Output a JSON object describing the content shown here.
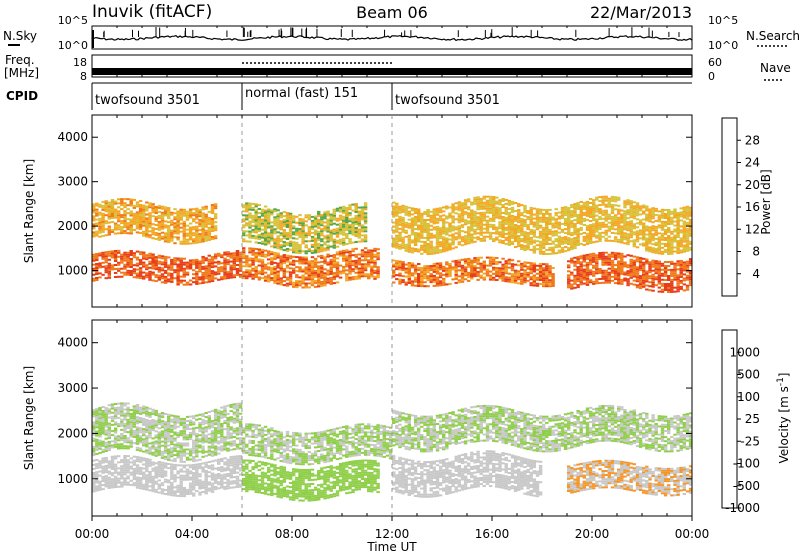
{
  "header": {
    "station": "Inuvik (fitACF)",
    "beam": "Beam 06",
    "date": "22/Mar/2013"
  },
  "chart_data": [
    {
      "type": "line",
      "panel": "noise",
      "left_label": "N.Sky",
      "right_label": "N.Search",
      "left_ticks": [
        "10^5",
        "10^0"
      ],
      "right_ticks": [
        "10^5",
        "10^0"
      ]
    },
    {
      "type": "line",
      "panel": "frequency",
      "left_label": [
        "Freq.",
        "[MHz]"
      ],
      "right_label": "Nave",
      "left_ticks": [
        "18",
        "8"
      ],
      "right_ticks": [
        "60",
        "0"
      ],
      "freq_mhz": 10.5
    },
    {
      "type": "table",
      "panel": "cpid",
      "label": "CPID",
      "segments": [
        {
          "start_hour": 0,
          "end_hour": 6,
          "name": "twofsound 3501"
        },
        {
          "start_hour": 6,
          "end_hour": 12,
          "name": "normal (fast) 151"
        },
        {
          "start_hour": 12,
          "end_hour": 24,
          "name": "twofsound 3501"
        }
      ]
    },
    {
      "type": "heatmap",
      "panel": "power",
      "ylabel": "Slant Range [km]",
      "ylim": [
        180,
        4500
      ],
      "yticks": [
        1000,
        2000,
        3000,
        4000
      ],
      "colorbar_label": "Power [dB]",
      "colorbar_range": [
        0,
        32
      ],
      "colorbar_ticks": [
        4,
        8,
        12,
        16,
        20,
        24,
        28
      ],
      "colors": [
        "#0a1fd4",
        "#2f55a8",
        "#3e8a5e",
        "#55a84a",
        "#d6c33a",
        "#f5a623",
        "#f07a1a",
        "#e83c1a"
      ],
      "echo_bands": [
        {
          "start_hour": 0,
          "end_hour": 6,
          "range_low": 750,
          "range_high": 1350,
          "level": 28
        },
        {
          "start_hour": 0,
          "end_hour": 5,
          "range_low": 1700,
          "range_high": 2500,
          "level": 22
        },
        {
          "start_hour": 6,
          "end_hour": 11.5,
          "range_low": 700,
          "range_high": 1400,
          "level": 26
        },
        {
          "start_hour": 6,
          "end_hour": 11,
          "range_low": 1500,
          "range_high": 2400,
          "level": 18
        },
        {
          "start_hour": 12,
          "end_hour": 18.5,
          "range_low": 700,
          "range_high": 1200,
          "level": 26
        },
        {
          "start_hour": 12,
          "end_hour": 24,
          "range_low": 1500,
          "range_high": 2500,
          "level": 20
        },
        {
          "start_hour": 19,
          "end_hour": 24,
          "range_low": 600,
          "range_high": 1300,
          "level": 28
        }
      ]
    },
    {
      "type": "heatmap",
      "panel": "velocity",
      "ylabel": "Slant Range [km]",
      "ylim": [
        180,
        4500
      ],
      "yticks": [
        1000,
        2000,
        3000,
        4000
      ],
      "colorbar_label": "Velocity [m s^-1]",
      "colorbar_range": [
        -1250,
        1250
      ],
      "colorbar_ticks": [
        "1000",
        "500",
        "100",
        "25",
        "-25",
        "-100",
        "-500",
        "-1000"
      ],
      "colors": [
        "#e81a1a",
        "#f06a14",
        "#f5962a",
        "#c8c8c8",
        "#8fcf4a",
        "#3ca04a",
        "#3a6eb8",
        "#1a2ed6"
      ],
      "echo_bands": [
        {
          "start_hour": 0,
          "end_hour": 6,
          "range_low": 700,
          "range_high": 1400,
          "level": -200
        },
        {
          "start_hour": 0,
          "end_hour": 6,
          "range_low": 1500,
          "range_high": 2500,
          "level": 0
        },
        {
          "start_hour": 6,
          "end_hour": 11.5,
          "range_low": 600,
          "range_high": 1300,
          "level": 150
        },
        {
          "start_hour": 6,
          "end_hour": 12,
          "range_low": 1400,
          "range_high": 2100,
          "level": 0
        },
        {
          "start_hour": 12,
          "end_hour": 18,
          "range_low": 700,
          "range_high": 1500,
          "level": -200
        },
        {
          "start_hour": 12,
          "end_hour": 24,
          "range_low": 1700,
          "range_high": 2500,
          "level": 0
        },
        {
          "start_hour": 19,
          "end_hour": 24,
          "range_low": 700,
          "range_high": 1300,
          "level": -300
        }
      ]
    }
  ],
  "xaxis": {
    "label": "Time UT",
    "range_hours": [
      0,
      24
    ],
    "ticks": [
      "00:00",
      "04:00",
      "08:00",
      "12:00",
      "16:00",
      "20:00",
      "00:00"
    ]
  }
}
